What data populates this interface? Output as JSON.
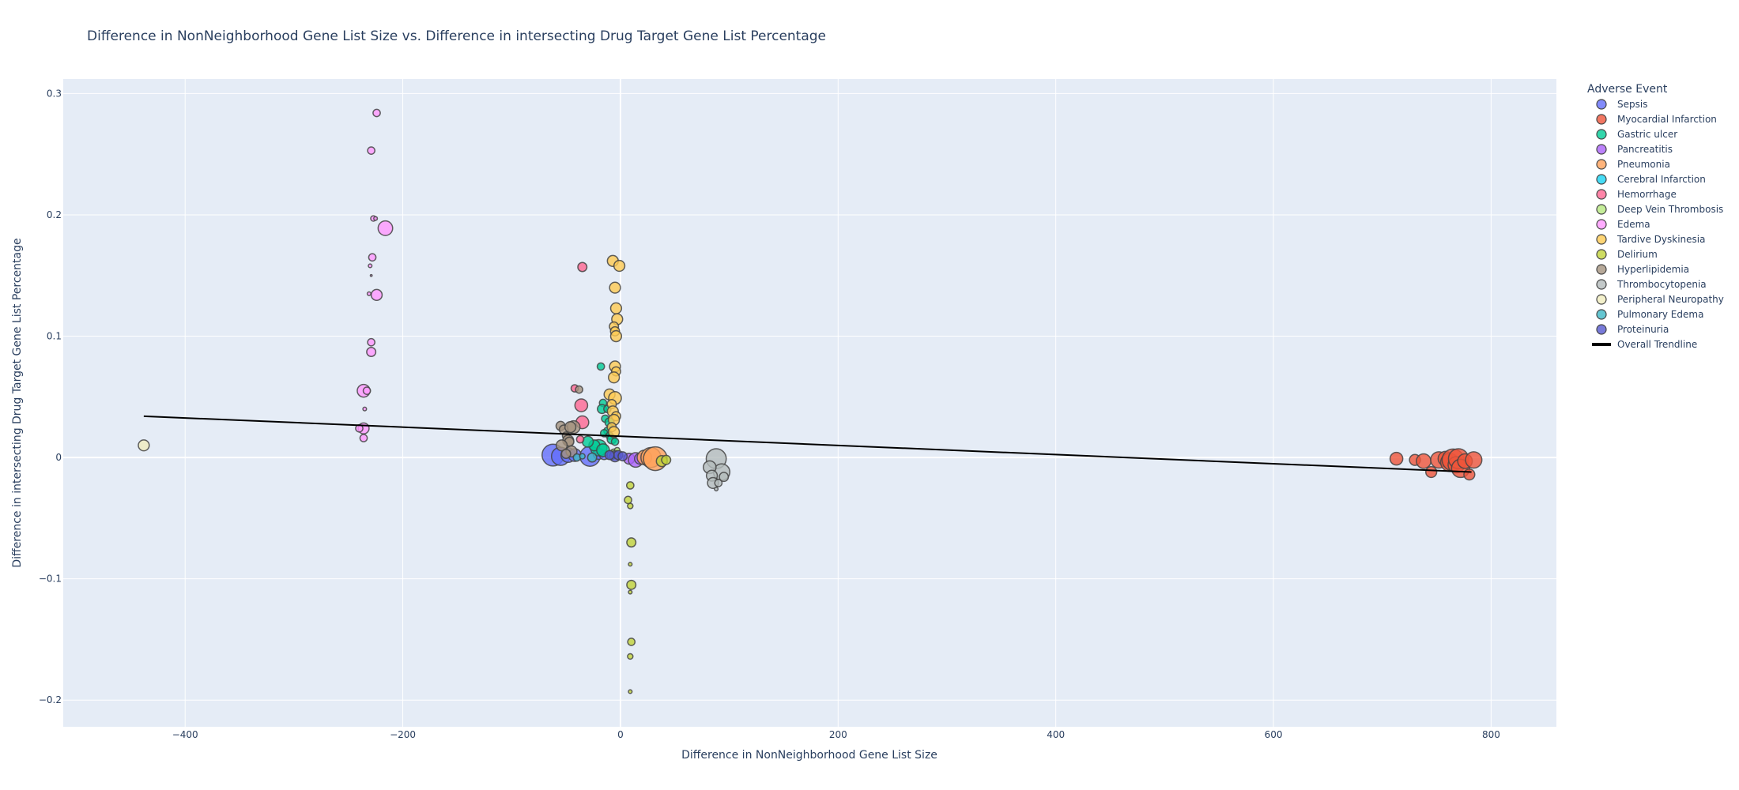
{
  "chart_data": {
    "type": "scatter",
    "title": "Difference in NonNeighborhood Gene List Size vs. Difference in intersecting Drug Target Gene List Percentage",
    "xlabel": "Difference in NonNeighborhood Gene List Size",
    "ylabel": "Difference in intersecting Drug Target Gene List Percentage",
    "xlim": [
      -512,
      860
    ],
    "ylim": [
      -0.222,
      0.312
    ],
    "x_ticks": [
      -400,
      -200,
      0,
      200,
      400,
      600,
      800
    ],
    "x_tick_labels": [
      "−400",
      "−200",
      "0",
      "200",
      "400",
      "600",
      "800"
    ],
    "y_ticks": [
      -0.2,
      -0.1,
      0,
      0.1,
      0.2,
      0.3
    ],
    "y_tick_labels": [
      "−0.2",
      "−0.1",
      "0",
      "0.1",
      "0.2",
      "0.3"
    ],
    "grid": true,
    "legend": {
      "title": "Adverse Event",
      "placement": "right"
    },
    "series": [
      {
        "name": "Sepsis",
        "color": "#636efa",
        "points": [
          [
            -62,
            0.002,
            12
          ],
          [
            -55,
            0.001,
            10
          ],
          [
            -48,
            0.002,
            8
          ],
          [
            -42,
            0.002,
            7
          ],
          [
            -28,
            0.001,
            11
          ],
          [
            -20,
            0.003,
            6
          ],
          [
            -15,
            0.002,
            5
          ]
        ]
      },
      {
        "name": "Myocardial Infarction",
        "color": "#ef553b",
        "points": [
          [
            713,
            -0.001,
            7
          ],
          [
            730,
            -0.002,
            6
          ],
          [
            738,
            -0.003,
            8
          ],
          [
            745,
            -0.012,
            6
          ],
          [
            752,
            -0.002,
            9
          ],
          [
            758,
            -0.001,
            8
          ],
          [
            762,
            -0.004,
            10
          ],
          [
            765,
            -0.002,
            12
          ],
          [
            768,
            -0.006,
            9
          ],
          [
            770,
            -0.001,
            11
          ],
          [
            772,
            -0.009,
            10
          ],
          [
            776,
            -0.003,
            8
          ],
          [
            780,
            -0.014,
            6
          ],
          [
            784,
            -0.002,
            9
          ]
        ]
      },
      {
        "name": "Gastric ulcer",
        "color": "#00cc96",
        "points": [
          [
            -18,
            0.075,
            4
          ],
          [
            -16,
            0.045,
            4
          ],
          [
            -17,
            0.04,
            5
          ],
          [
            -12,
            0.04,
            4
          ],
          [
            -14,
            0.032,
            4
          ],
          [
            -10,
            0.029,
            5
          ],
          [
            -12,
            0.022,
            4
          ],
          [
            -15,
            0.02,
            4
          ],
          [
            -10,
            0.018,
            4
          ],
          [
            -8,
            0.015,
            5
          ],
          [
            -5,
            0.013,
            4
          ],
          [
            -20,
            0.008,
            9
          ],
          [
            -24,
            0.01,
            6
          ],
          [
            -30,
            0.013,
            6
          ],
          [
            -16,
            0.006,
            7
          ]
        ]
      },
      {
        "name": "Pancreatitis",
        "color": "#ab63fa",
        "points": [
          [
            8,
            -0.001,
            6
          ],
          [
            14,
            -0.002,
            8
          ],
          [
            18,
            -0.001,
            6
          ]
        ]
      },
      {
        "name": "Pneumonia",
        "color": "#ffa15a",
        "points": [
          [
            22,
            0.0,
            8
          ],
          [
            28,
            0.0,
            11
          ],
          [
            32,
            -0.001,
            13
          ]
        ]
      },
      {
        "name": "Cerebral Infarction",
        "color": "#19d3f3",
        "points": [
          [
            -8,
            0.002,
            5
          ],
          [
            -4,
            0.003,
            4
          ]
        ]
      },
      {
        "name": "Hemorrhage",
        "color": "#ff6692",
        "points": [
          [
            -35,
            0.157,
            5
          ],
          [
            -42,
            0.057,
            4
          ],
          [
            -36,
            0.043,
            7
          ],
          [
            -35,
            0.029,
            7
          ],
          [
            -37,
            0.015,
            4
          ]
        ]
      },
      {
        "name": "Deep Vein Thrombosis",
        "color": "#b6e880",
        "points": [
          [
            -6,
            0.004,
            4
          ],
          [
            -3,
            0.006,
            3
          ]
        ]
      },
      {
        "name": "Edema",
        "color": "#ff97ff",
        "points": [
          [
            -224,
            0.284,
            4
          ],
          [
            -229,
            0.253,
            4
          ],
          [
            -227,
            0.197,
            3
          ],
          [
            -216,
            0.189,
            8
          ],
          [
            -228,
            0.165,
            4
          ],
          [
            -230,
            0.158,
            2
          ],
          [
            -229,
            0.15,
            1
          ],
          [
            -231,
            0.135,
            2
          ],
          [
            -224,
            0.134,
            6
          ],
          [
            -229,
            0.095,
            4
          ],
          [
            -229,
            0.087,
            5
          ],
          [
            -236,
            0.055,
            7
          ],
          [
            -233,
            0.055,
            4
          ],
          [
            -235,
            0.04,
            2
          ],
          [
            -236,
            0.024,
            6
          ],
          [
            -240,
            0.024,
            4
          ],
          [
            -236,
            0.016,
            4
          ],
          [
            -225,
            0.197,
            2
          ]
        ]
      },
      {
        "name": "Tardive Dyskinesia",
        "color": "#fecb52",
        "points": [
          [
            -7,
            0.162,
            6
          ],
          [
            -1,
            0.158,
            6
          ],
          [
            -5,
            0.14,
            6
          ],
          [
            -4,
            0.123,
            6
          ],
          [
            -3,
            0.114,
            6
          ],
          [
            -6,
            0.108,
            5
          ],
          [
            -5,
            0.104,
            5
          ],
          [
            -4,
            0.1,
            6
          ],
          [
            -5,
            0.075,
            6
          ],
          [
            -4,
            0.071,
            5
          ],
          [
            -6,
            0.066,
            6
          ],
          [
            -10,
            0.052,
            6
          ],
          [
            -5,
            0.049,
            7
          ],
          [
            -8,
            0.044,
            5
          ],
          [
            -7,
            0.038,
            6
          ],
          [
            -4,
            0.034,
            5
          ],
          [
            -6,
            0.031,
            6
          ],
          [
            -8,
            0.025,
            5
          ],
          [
            -6,
            0.021,
            6
          ]
        ]
      },
      {
        "name": "Delirium",
        "color": "#c2d33a",
        "points": [
          [
            9,
            -0.023,
            4
          ],
          [
            7,
            -0.035,
            4
          ],
          [
            9,
            -0.04,
            3
          ],
          [
            10,
            -0.07,
            5
          ],
          [
            9,
            -0.088,
            2
          ],
          [
            10,
            -0.105,
            5
          ],
          [
            9,
            -0.111,
            2
          ],
          [
            10,
            -0.152,
            4
          ],
          [
            9,
            -0.164,
            3
          ],
          [
            9,
            -0.193,
            2
          ],
          [
            38,
            -0.003,
            6
          ],
          [
            42,
            -0.002,
            5
          ]
        ]
      },
      {
        "name": "Hyperlipidemia",
        "color": "#a59480",
        "points": [
          [
            -55,
            0.026,
            5
          ],
          [
            -52,
            0.023,
            5
          ],
          [
            -50,
            0.018,
            4
          ],
          [
            -48,
            0.014,
            6
          ],
          [
            -47,
            0.013,
            5
          ],
          [
            -54,
            0.01,
            6
          ],
          [
            -45,
            0.005,
            6
          ],
          [
            -43,
            0.025,
            7
          ],
          [
            -46,
            0.025,
            6
          ],
          [
            -38,
            0.056,
            4
          ],
          [
            -50,
            0.003,
            5
          ]
        ]
      },
      {
        "name": "Thrombocytopenia",
        "color": "#b4bcbc",
        "points": [
          [
            88,
            -0.001,
            11
          ],
          [
            93,
            -0.012,
            9
          ],
          [
            82,
            -0.008,
            7
          ],
          [
            84,
            -0.015,
            6
          ],
          [
            85,
            -0.021,
            6
          ],
          [
            90,
            -0.021,
            4
          ],
          [
            88,
            -0.026,
            2
          ],
          [
            95,
            -0.016,
            5
          ]
        ]
      },
      {
        "name": "Peripheral Neuropathy",
        "color": "#f0ecbe",
        "points": [
          [
            -438,
            0.01,
            6
          ]
        ]
      },
      {
        "name": "Pulmonary Edema",
        "color": "#3fb8c6",
        "points": [
          [
            -40,
            0.0,
            4
          ],
          [
            -35,
            0.001,
            3
          ],
          [
            -26,
            0.0,
            5
          ]
        ]
      },
      {
        "name": "Proteinuria",
        "color": "#5659cf",
        "points": [
          [
            -5,
            0.001,
            6
          ],
          [
            -2,
            0.002,
            5
          ],
          [
            2,
            0.001,
            5
          ],
          [
            -10,
            0.002,
            5
          ]
        ]
      }
    ],
    "trendline": {
      "name": "Overall Trendline",
      "color": "#000000",
      "x": [
        -438,
        782
      ],
      "y": [
        0.034,
        -0.012
      ]
    }
  }
}
